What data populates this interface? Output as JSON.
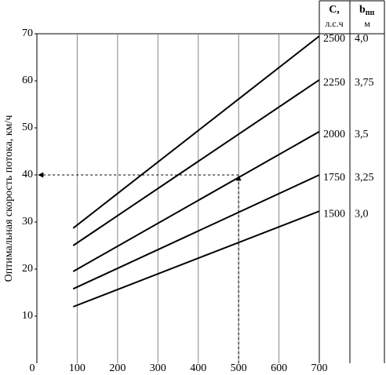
{
  "chart_data": {
    "type": "line",
    "y_label": "Оптимальная скорость потока, км/ч",
    "x": [
      90,
      700
    ],
    "series": [
      {
        "name": "2500",
        "b": "4,0",
        "color": "#000000",
        "values": [
          28.7,
          69.5
        ]
      },
      {
        "name": "2250",
        "b": "3,75",
        "color": "#000000",
        "values": [
          25,
          60.2
        ]
      },
      {
        "name": "2000",
        "b": "3,5",
        "color": "#000000",
        "values": [
          19.5,
          49.2
        ]
      },
      {
        "name": "1750",
        "b": "3,25",
        "color": "#000000",
        "values": [
          15.8,
          40
        ]
      },
      {
        "name": "1500",
        "b": "3,0",
        "color": "#000000",
        "values": [
          12,
          32.3
        ]
      }
    ],
    "c_header": [
      "C,",
      "л.с.ч"
    ],
    "b_header": {
      "main": "b",
      "sub": "пп",
      "unit": "м"
    },
    "guide": {
      "x": 500,
      "y": 40
    },
    "xlim": [
      0,
      700
    ],
    "xticks": [
      0,
      100,
      200,
      300,
      400,
      500,
      600,
      700
    ],
    "ylim": [
      0,
      70
    ],
    "yticks": [
      10,
      20,
      30,
      40,
      50,
      60,
      70
    ],
    "grid": true
  }
}
